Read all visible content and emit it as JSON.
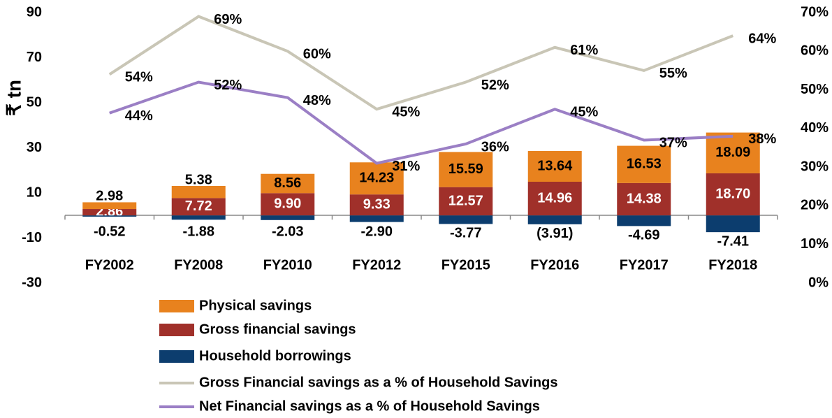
{
  "chart_data": {
    "type": "bar",
    "ylabel": "₹ tn",
    "categories": [
      "FY2002",
      "FY2008",
      "FY2010",
      "FY2012",
      "FY2015",
      "FY2016",
      "FY2017",
      "FY2018"
    ],
    "ylim": [
      -30,
      90
    ],
    "yticks": [
      -30,
      -10,
      10,
      30,
      50,
      70,
      90
    ],
    "y2lim": [
      0,
      70
    ],
    "y2ticks": [
      {
        "value": 0,
        "label": "0%"
      },
      {
        "value": 10,
        "label": "10%"
      },
      {
        "value": 20,
        "label": "20%"
      },
      {
        "value": 30,
        "label": "30%"
      },
      {
        "value": 40,
        "label": "40%"
      },
      {
        "value": 50,
        "label": "50%"
      },
      {
        "value": 60,
        "label": "60%"
      },
      {
        "value": 70,
        "label": "70%"
      }
    ],
    "series": [
      {
        "name": "Physical savings",
        "color": "#e8821e",
        "type": "bar",
        "values": [
          2.98,
          5.38,
          8.56,
          14.23,
          15.59,
          13.64,
          16.53,
          18.09
        ]
      },
      {
        "name": "Gross financial savings",
        "color": "#a0302a",
        "type": "bar",
        "values": [
          2.86,
          7.72,
          9.9,
          9.33,
          12.57,
          14.96,
          14.38,
          18.7
        ],
        "value_labels": [
          "2.86",
          "7.72",
          "9.90",
          "9.33",
          "12.57",
          "14.96",
          "14.38",
          "18.70"
        ]
      },
      {
        "name": "Household borrowings",
        "color": "#0c3d6e",
        "type": "bar",
        "values": [
          -0.52,
          -1.88,
          -2.03,
          -2.9,
          -3.77,
          -3.91,
          -4.69,
          -7.41
        ],
        "value_labels": [
          "-0.52",
          "-1.88",
          "-2.03",
          "-2.90",
          "-3.77",
          "(3.91)",
          "-4.69",
          "-7.41"
        ]
      },
      {
        "name": "Gross Financial savings as a % of Household Savings",
        "color": "#c9c6b6",
        "type": "line",
        "axis": "y2",
        "values": [
          54,
          69,
          60,
          45,
          52,
          61,
          55,
          64
        ],
        "value_labels": [
          "54%",
          "69%",
          "60%",
          "45%",
          "52%",
          "61%",
          "55%",
          "64%"
        ]
      },
      {
        "name": "Net Financial savings as a % of Household Savings",
        "color": "#9b7fc5",
        "type": "line",
        "axis": "y2",
        "values": [
          44,
          52,
          48,
          31,
          36,
          45,
          37,
          38
        ],
        "value_labels": [
          "44%",
          "52%",
          "48%",
          "31%",
          "36%",
          "45%",
          "37%",
          "38%"
        ]
      }
    ]
  }
}
